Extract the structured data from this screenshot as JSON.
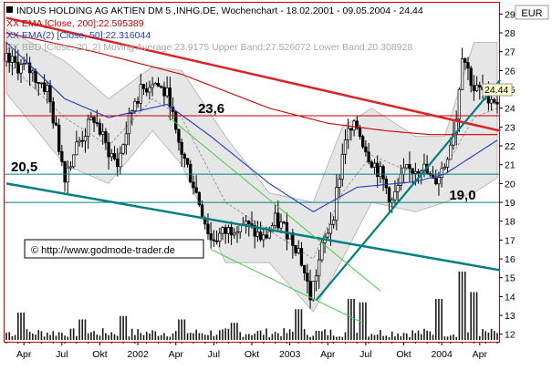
{
  "chart_data": {
    "type": "candlestick",
    "title": "INDUS HOLDING AG AKTIEN DM 5 ,INHG.DE, Wochenchart - 18.02.2001 - 09.05.2004 - 24.44",
    "currency": "EUR",
    "last_price": "24.44",
    "legend": [
      {
        "text": "XX EMA [Close, 200]:22.595389",
        "color": "#cc0000"
      },
      {
        "text": "XX EMA(2) [Close, 50]:22.316044",
        "color": "#1e3cc8"
      },
      {
        "text": "XX BBD [Close, 20, 2] Moving Average:23.9175 Upper Band:27.526072 Lower Band:20.308928",
        "color": "#999999"
      }
    ],
    "copyright": "© http://www.godmode-trader.de",
    "x_labels": [
      "Apr",
      "Jul",
      "Okt",
      "2002",
      "Apr",
      "Jul",
      "Okt",
      "2003",
      "Apr",
      "Jul",
      "Okt",
      "2004",
      "Apr"
    ],
    "y_ticks": [
      12,
      13,
      14,
      15,
      16,
      17,
      18,
      19,
      20,
      21,
      22,
      23,
      24,
      25,
      26,
      27,
      28,
      29
    ],
    "ylim": [
      11.6,
      29.6
    ],
    "weeks": 169,
    "price_path": [
      [
        0,
        26.5
      ],
      [
        8,
        26.0
      ],
      [
        14,
        25.0
      ],
      [
        20,
        20.5
      ],
      [
        24,
        22.0
      ],
      [
        30,
        23.5
      ],
      [
        34,
        22.0
      ],
      [
        38,
        21.0
      ],
      [
        44,
        24.5
      ],
      [
        50,
        25.5
      ],
      [
        56,
        24.5
      ],
      [
        58,
        22.5
      ],
      [
        64,
        20.0
      ],
      [
        70,
        17.0
      ],
      [
        76,
        17.5
      ],
      [
        80,
        18.0
      ],
      [
        84,
        17.5
      ],
      [
        88,
        17.0
      ],
      [
        92,
        18.0
      ],
      [
        96,
        17.5
      ],
      [
        100,
        16.5
      ],
      [
        104,
        14.0
      ],
      [
        108,
        16.5
      ],
      [
        112,
        18.5
      ],
      [
        116,
        22.5
      ],
      [
        120,
        23.0
      ],
      [
        124,
        21.5
      ],
      [
        128,
        20.5
      ],
      [
        132,
        19.0
      ],
      [
        136,
        20.5
      ],
      [
        142,
        21.0
      ],
      [
        146,
        20.0
      ],
      [
        150,
        21.0
      ],
      [
        154,
        23.5
      ],
      [
        156,
        27.0
      ],
      [
        160,
        25.0
      ],
      [
        164,
        24.8
      ],
      [
        168,
        24.4
      ]
    ],
    "ema200": [
      [
        0,
        28.0
      ],
      [
        30,
        27.0
      ],
      [
        60,
        25.8
      ],
      [
        90,
        24.0
      ],
      [
        110,
        23.2
      ],
      [
        130,
        22.8
      ],
      [
        145,
        22.6
      ],
      [
        168,
        22.6
      ]
    ],
    "ema50": [
      [
        0,
        27.5
      ],
      [
        20,
        24.5
      ],
      [
        35,
        23.5
      ],
      [
        55,
        24.2
      ],
      [
        70,
        22.5
      ],
      [
        90,
        20.0
      ],
      [
        105,
        18.5
      ],
      [
        120,
        19.8
      ],
      [
        140,
        20.1
      ],
      [
        150,
        20.5
      ],
      [
        168,
        22.3
      ]
    ],
    "bb_mid": [
      [
        0,
        26.5
      ],
      [
        20,
        23.5
      ],
      [
        35,
        22.0
      ],
      [
        50,
        24.5
      ],
      [
        60,
        23.5
      ],
      [
        75,
        19.0
      ],
      [
        90,
        17.5
      ],
      [
        105,
        16.0
      ],
      [
        115,
        19.5
      ],
      [
        125,
        21.5
      ],
      [
        140,
        20.5
      ],
      [
        150,
        20.8
      ],
      [
        160,
        23.5
      ],
      [
        168,
        24.0
      ]
    ],
    "bb_upper": [
      [
        0,
        28.2
      ],
      [
        20,
        26.5
      ],
      [
        35,
        24.5
      ],
      [
        50,
        26.2
      ],
      [
        60,
        26.0
      ],
      [
        75,
        22.5
      ],
      [
        90,
        19.5
      ],
      [
        105,
        19.0
      ],
      [
        115,
        23.0
      ],
      [
        125,
        24.0
      ],
      [
        140,
        22.5
      ],
      [
        150,
        22.5
      ],
      [
        160,
        27.5
      ],
      [
        168,
        27.5
      ]
    ],
    "bb_lower": [
      [
        0,
        24.8
      ],
      [
        20,
        21.0
      ],
      [
        35,
        20.0
      ],
      [
        50,
        22.8
      ],
      [
        60,
        21.0
      ],
      [
        75,
        15.8
      ],
      [
        90,
        15.8
      ],
      [
        105,
        13.2
      ],
      [
        115,
        16.0
      ],
      [
        125,
        19.0
      ],
      [
        140,
        18.5
      ],
      [
        150,
        19.0
      ],
      [
        160,
        19.5
      ],
      [
        168,
        20.3
      ]
    ],
    "horizontal_lines": [
      {
        "value": 23.6,
        "label": "23,6",
        "color": "#cc0000",
        "label_week": 64
      },
      {
        "value": 20.5,
        "label": "20,5",
        "color": "#008080",
        "label_week": 0
      },
      {
        "value": 19.0,
        "label": "19,0",
        "color": "#008080",
        "label_week": 150
      }
    ],
    "trendlines": [
      {
        "from": [
          0,
          28.8
        ],
        "to": [
          169,
          22.8
        ],
        "color": "#dd2222",
        "width": 2.5
      },
      {
        "from": [
          0,
          20.0
        ],
        "to": [
          169,
          15.4
        ],
        "color": "#008080",
        "width": 2.5
      },
      {
        "from": [
          106,
          13.8
        ],
        "to": [
          169,
          25.5
        ],
        "color": "#008080",
        "width": 2.2
      },
      {
        "from": [
          55,
          23.6
        ],
        "to": [
          128,
          14.3
        ],
        "color": "#44cc44",
        "width": 1
      },
      {
        "from": [
          70,
          16.5
        ],
        "to": [
          122,
          12.6
        ],
        "color": "#44cc44",
        "width": 1
      }
    ],
    "volume_spikes": [
      [
        5,
        0.4
      ],
      [
        26,
        0.3
      ],
      [
        40,
        0.35
      ],
      [
        60,
        0.3
      ],
      [
        78,
        0.25
      ],
      [
        100,
        0.45
      ],
      [
        118,
        0.6
      ],
      [
        122,
        0.55
      ],
      [
        148,
        0.6
      ],
      [
        156,
        1.0
      ],
      [
        160,
        0.7
      ]
    ]
  }
}
